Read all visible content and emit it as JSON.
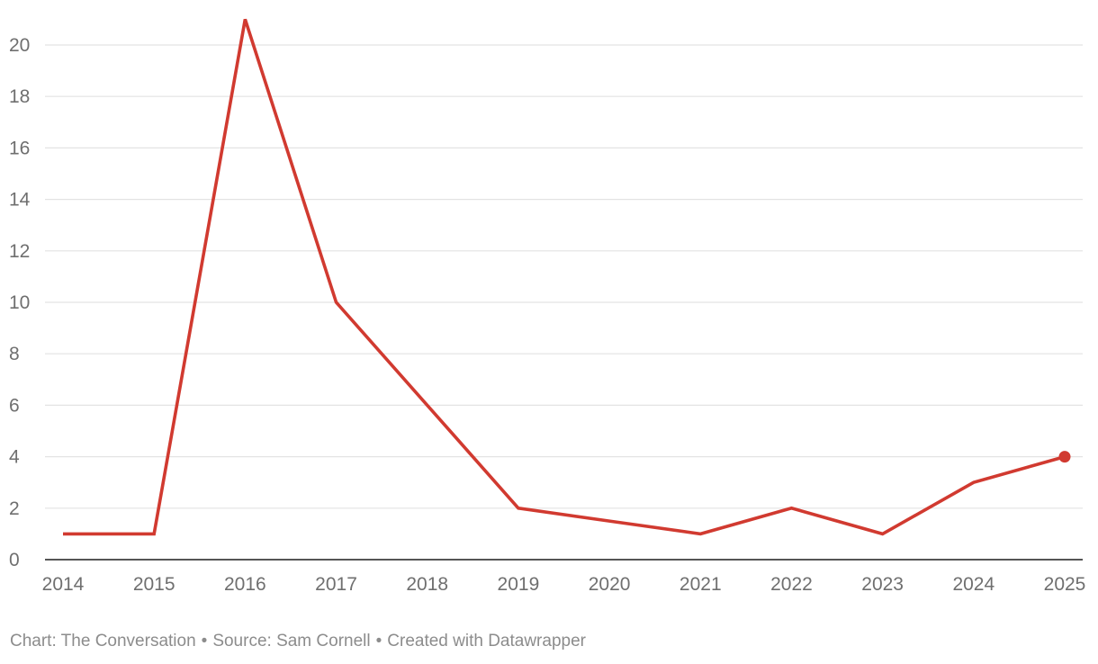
{
  "chart_data": {
    "type": "line",
    "x": [
      "2014",
      "2015",
      "2016",
      "2017",
      "2018",
      "2019",
      "2020",
      "2021",
      "2022",
      "2023",
      "2024",
      "2025"
    ],
    "series": [
      {
        "values": [
          1,
          1,
          21,
          10,
          6,
          2,
          1.5,
          1,
          2,
          1,
          3,
          4
        ],
        "color": "#d13a30"
      }
    ],
    "ylim": [
      0,
      21
    ],
    "yticks": [
      0,
      2,
      4,
      6,
      8,
      10,
      12,
      14,
      16,
      18,
      20
    ],
    "grid": true,
    "end_marker": "last point highlighted with a dot"
  },
  "footer": {
    "chart_credit": "Chart: The Conversation",
    "source": "Source: Sam Cornell",
    "created": "Created with Datawrapper",
    "separator": "•"
  }
}
